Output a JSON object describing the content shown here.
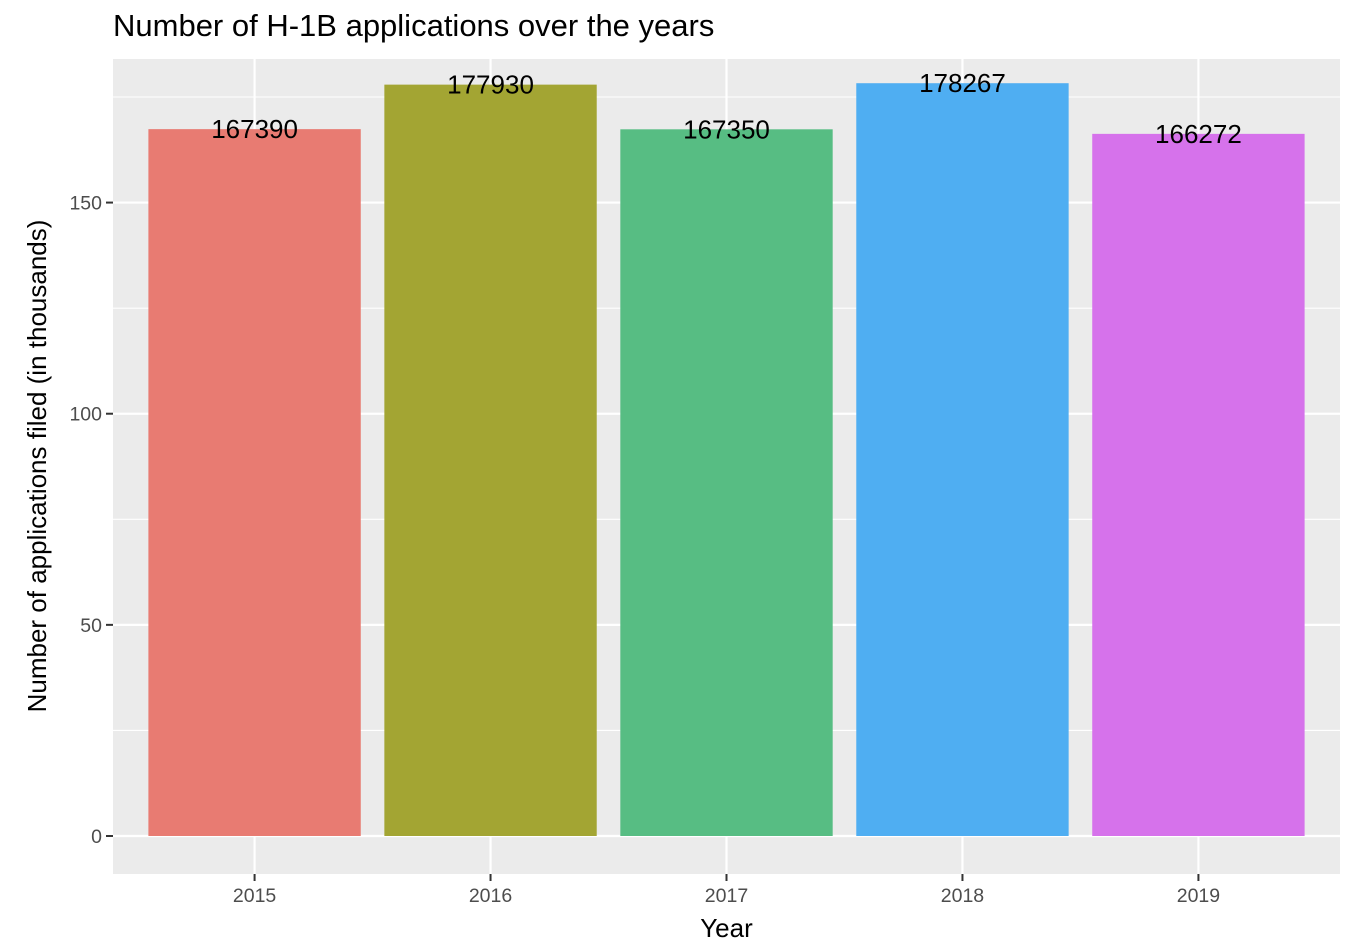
{
  "chart_data": {
    "type": "bar",
    "title": "Number of H-1B applications over the years",
    "xlabel": "Year",
    "ylabel": "Number of applications filed (in thousands)",
    "categories": [
      "2015",
      "2016",
      "2017",
      "2018",
      "2019"
    ],
    "values": [
      167.39,
      177.93,
      167.35,
      178.267,
      166.272
    ],
    "data_labels": [
      "167390",
      "177930",
      "167350",
      "178267",
      "166272"
    ],
    "colors": [
      "#E87B72",
      "#A3A533",
      "#57BD83",
      "#4FAEF2",
      "#D672EB"
    ],
    "ylim": [
      -9,
      184
    ],
    "yticks": [
      0,
      50,
      100,
      150
    ],
    "ytick_labels": [
      "0",
      "50",
      "100",
      "150"
    ],
    "grid": true,
    "legend": "none",
    "panel_background": "#EBEBEB",
    "grid_color": "#FFFFFF"
  }
}
